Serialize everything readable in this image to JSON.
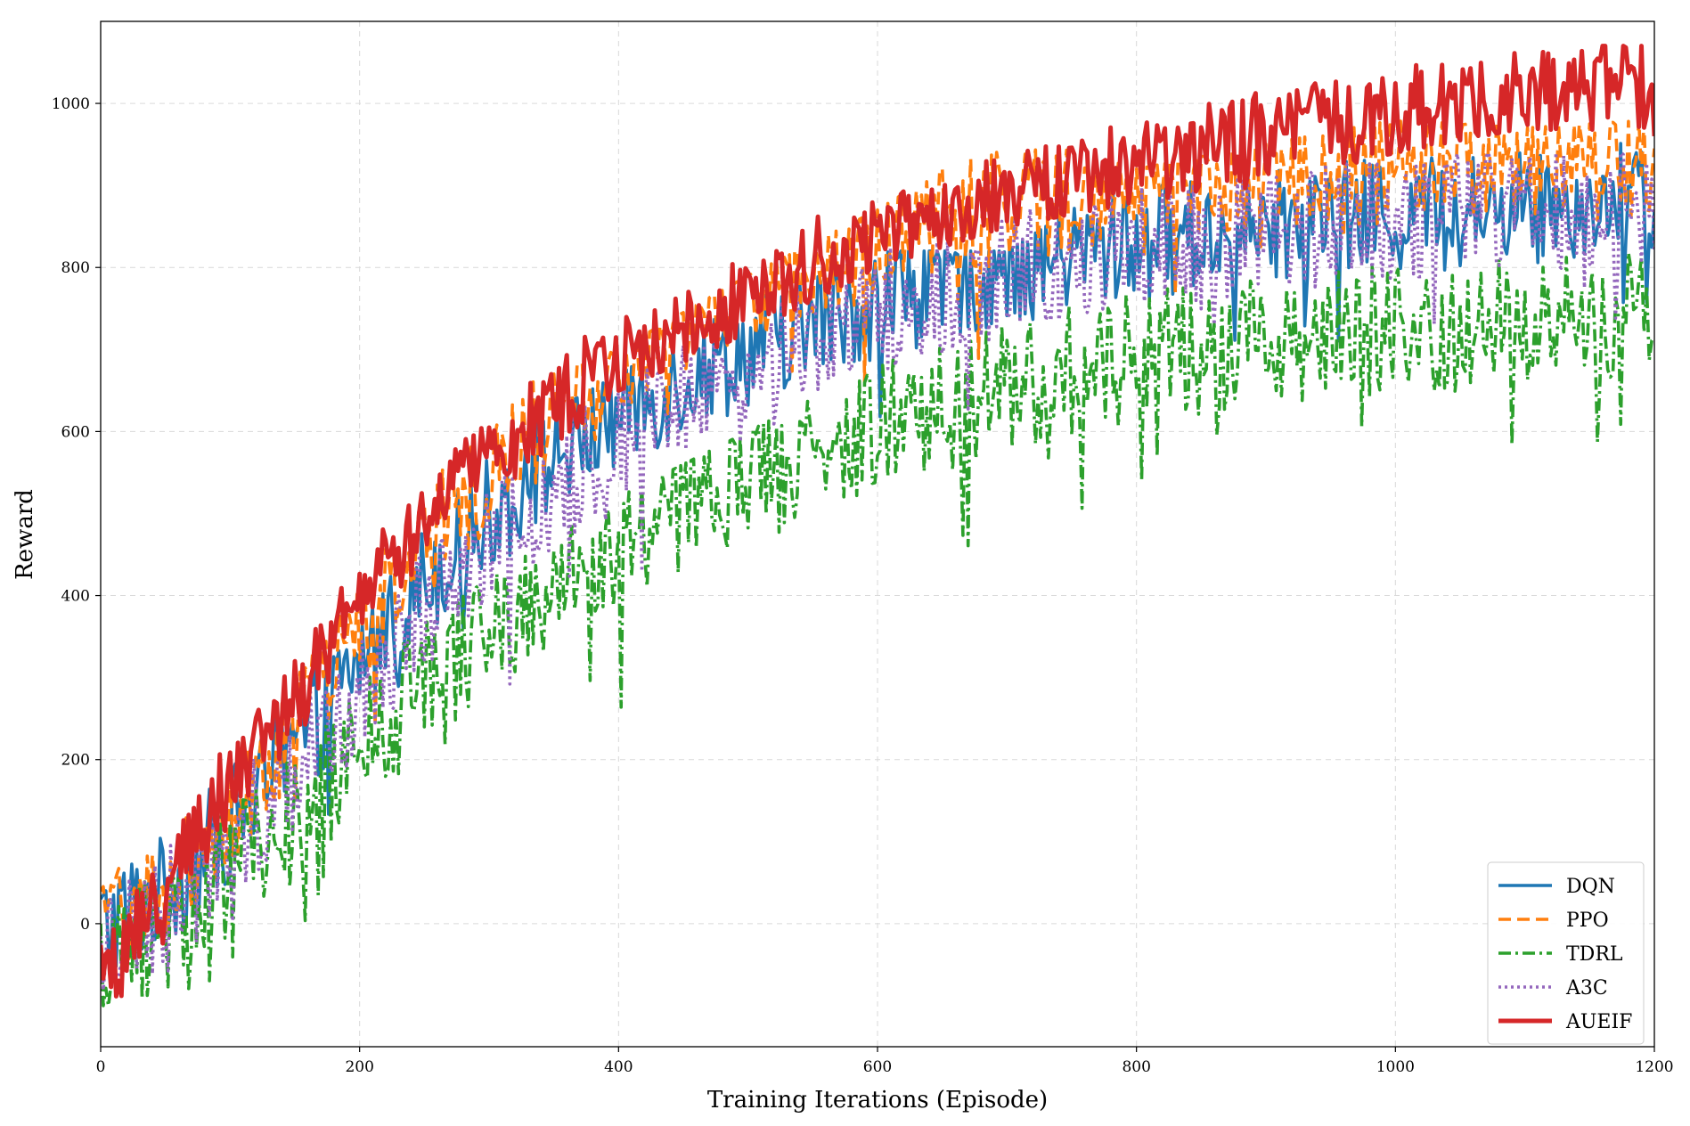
{
  "chart_data": {
    "type": "line",
    "title": "",
    "xlabel": "Training Iterations (Episode)",
    "ylabel": "Reward",
    "xlim": [
      0,
      1200
    ],
    "ylim": [
      -150,
      1100
    ],
    "x_ticks": [
      0,
      200,
      400,
      600,
      800,
      1000,
      1200
    ],
    "y_ticks": [
      0,
      200,
      400,
      600,
      800,
      1000
    ],
    "grid": true,
    "legend_position": "bottom-right",
    "x_step": 2,
    "series": [
      {
        "name": "DQN",
        "color": "#1f77b4",
        "style": "solid",
        "values": [
          0,
          40,
          120,
          210,
          320,
          420,
          500,
          570,
          620,
          665,
          700,
          730,
          760,
          780,
          800,
          815,
          830,
          840,
          850,
          858,
          865,
          872,
          878,
          882,
          885
        ],
        "noise": 70,
        "ranges": [
          [
            0,
            -100,
            10
          ],
          [
            100,
            60,
            260
          ],
          [
            200,
            170,
            500
          ],
          [
            300,
            300,
            560
          ],
          [
            400,
            420,
            650
          ],
          [
            500,
            500,
            740
          ],
          [
            600,
            530,
            800
          ],
          [
            700,
            560,
            800
          ],
          [
            800,
            660,
            900
          ],
          [
            900,
            690,
            920
          ],
          [
            1000,
            690,
            910
          ],
          [
            1100,
            700,
            950
          ],
          [
            1200,
            720,
            930
          ]
        ]
      },
      {
        "name": "PPO",
        "color": "#ff7f0e",
        "style": "dashed",
        "values": [
          0,
          50,
          140,
          240,
          350,
          460,
          550,
          630,
          690,
          740,
          780,
          810,
          840,
          860,
          875,
          890,
          900,
          908,
          915,
          920,
          925,
          930,
          932,
          935,
          937
        ],
        "noise": 70,
        "ranges": [
          [
            0,
            -100,
            20
          ],
          [
            100,
            100,
            280
          ],
          [
            200,
            200,
            400
          ],
          [
            300,
            350,
            620
          ],
          [
            400,
            470,
            680
          ],
          [
            500,
            560,
            770
          ],
          [
            600,
            640,
            850
          ],
          [
            700,
            700,
            950
          ],
          [
            800,
            780,
            900
          ],
          [
            900,
            810,
            930
          ],
          [
            1000,
            830,
            960
          ],
          [
            1100,
            850,
            950
          ],
          [
            1200,
            860,
            960
          ]
        ]
      },
      {
        "name": "TDRL",
        "color": "#2ca02c",
        "style": "dashdot",
        "values": [
          -50,
          0,
          60,
          130,
          210,
          290,
          360,
          420,
          470,
          510,
          550,
          580,
          610,
          635,
          655,
          675,
          690,
          700,
          710,
          718,
          725,
          730,
          735,
          738,
          740
        ],
        "noise": 80,
        "ranges": [
          [
            0,
            -100,
            -20
          ],
          [
            100,
            -40,
            130
          ],
          [
            200,
            70,
            300
          ],
          [
            300,
            200,
            400
          ],
          [
            400,
            220,
            500
          ],
          [
            500,
            400,
            580
          ],
          [
            600,
            450,
            660
          ],
          [
            700,
            480,
            720
          ],
          [
            800,
            560,
            780
          ],
          [
            900,
            600,
            800
          ],
          [
            1000,
            560,
            820
          ],
          [
            1100,
            540,
            820
          ],
          [
            1200,
            660,
            800
          ]
        ]
      },
      {
        "name": "A3C",
        "color": "#9467bd",
        "style": "dotted",
        "values": [
          -30,
          20,
          100,
          190,
          290,
          380,
          460,
          530,
          590,
          640,
          680,
          715,
          745,
          770,
          790,
          808,
          822,
          834,
          845,
          853,
          860,
          866,
          871,
          875,
          878
        ],
        "noise": 75,
        "ranges": [
          [
            0,
            -100,
            0
          ],
          [
            100,
            20,
            250
          ],
          [
            200,
            170,
            400
          ],
          [
            300,
            280,
            560
          ],
          [
            400,
            390,
            650
          ],
          [
            500,
            480,
            720
          ],
          [
            600,
            520,
            810
          ],
          [
            700,
            590,
            870
          ],
          [
            800,
            630,
            890
          ],
          [
            900,
            650,
            920
          ],
          [
            1000,
            660,
            920
          ],
          [
            1100,
            700,
            920
          ],
          [
            1200,
            700,
            920
          ]
        ]
      },
      {
        "name": "AUEIF",
        "color": "#d62728",
        "style": "solid",
        "values": [
          -80,
          60,
          170,
          280,
          390,
          490,
          570,
          640,
          690,
          730,
          770,
          805,
          835,
          860,
          885,
          905,
          925,
          945,
          960,
          975,
          990,
          1000,
          1010,
          1020,
          1025
        ],
        "noise": 55,
        "ranges": [
          [
            0,
            -100,
            0
          ],
          [
            100,
            100,
            300
          ],
          [
            200,
            340,
            450
          ],
          [
            300,
            530,
            620
          ],
          [
            400,
            670,
            740
          ],
          [
            500,
            740,
            800
          ],
          [
            600,
            820,
            900
          ],
          [
            700,
            870,
            940
          ],
          [
            800,
            900,
            1000
          ],
          [
            900,
            920,
            1020
          ],
          [
            1000,
            960,
            1050
          ],
          [
            1100,
            990,
            1050
          ],
          [
            1200,
            980,
            1050
          ]
        ]
      }
    ]
  }
}
